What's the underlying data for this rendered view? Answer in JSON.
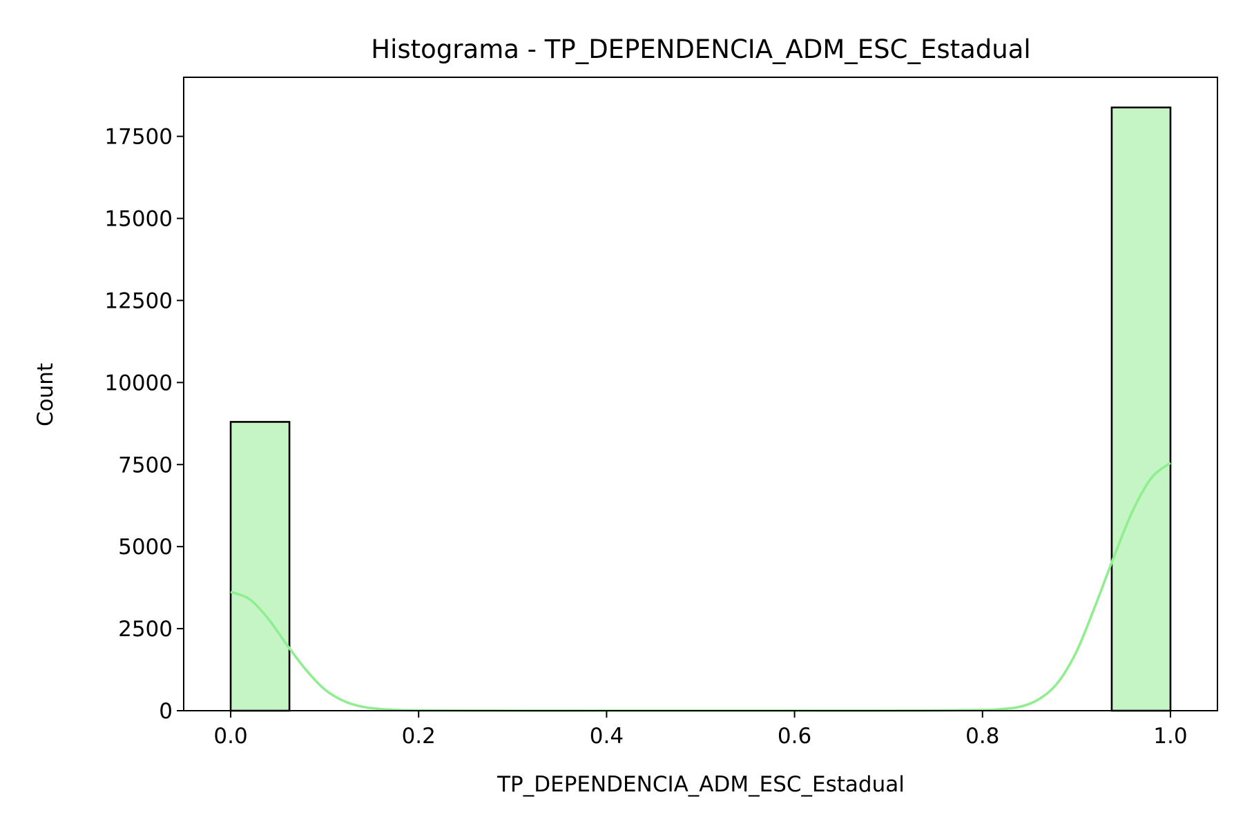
{
  "chart_data": {
    "type": "bar",
    "title": "Histograma - TP_DEPENDENCIA_ADM_ESC_Estadual",
    "xlabel": "TP_DEPENDENCIA_ADM_ESC_Estadual",
    "ylabel": "Count",
    "xlim": [
      -0.05,
      1.05
    ],
    "ylim": [
      0,
      19300
    ],
    "xticks": [
      0.0,
      0.2,
      0.4,
      0.6,
      0.8,
      1.0
    ],
    "xtick_labels": [
      "0.0",
      "0.2",
      "0.4",
      "0.6",
      "0.8",
      "1.0"
    ],
    "yticks": [
      0,
      2500,
      5000,
      7500,
      10000,
      12500,
      15000,
      17500
    ],
    "ytick_labels": [
      "0",
      "2500",
      "5000",
      "7500",
      "10000",
      "12500",
      "15000",
      "17500"
    ],
    "bins": [
      {
        "x0": 0.0,
        "x1": 0.0625,
        "count": 8800
      },
      {
        "x0": 0.9375,
        "x1": 1.0,
        "count": 18380
      }
    ],
    "kde": {
      "x": [
        0.0,
        0.02,
        0.04,
        0.06,
        0.08,
        0.1,
        0.12,
        0.14,
        0.16,
        0.18,
        0.2,
        0.3,
        0.4,
        0.5,
        0.6,
        0.7,
        0.8,
        0.82,
        0.84,
        0.86,
        0.88,
        0.9,
        0.92,
        0.94,
        0.96,
        0.98,
        1.0
      ],
      "y": [
        3620,
        3400,
        2800,
        2000,
        1250,
        650,
        300,
        120,
        50,
        20,
        10,
        0,
        0,
        0,
        0,
        0,
        20,
        50,
        120,
        350,
        850,
        1800,
        3200,
        4700,
        6100,
        7100,
        7550
      ]
    },
    "bar_color": "#c5f5c5",
    "bar_edge_color": "#000000",
    "kde_color": "#90ee90",
    "grid": false,
    "legend": "none"
  }
}
